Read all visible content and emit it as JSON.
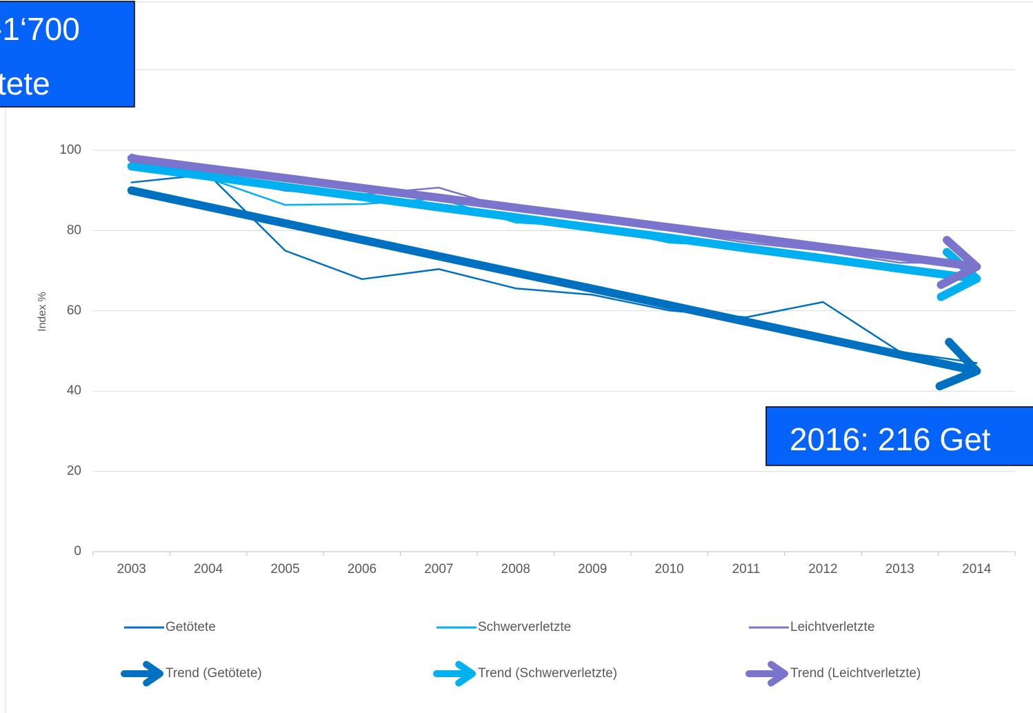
{
  "chart_data": {
    "type": "line",
    "y_label": "Index %",
    "categories": [
      "2003",
      "2004",
      "2005",
      "2006",
      "2007",
      "2008",
      "2009",
      "2010",
      "2011",
      "2012",
      "2013",
      "2014"
    ],
    "ylim": [
      0,
      137
    ],
    "yticks": [
      0,
      20,
      40,
      60,
      80,
      100
    ],
    "grid": true,
    "series": [
      {
        "name": "Getötete",
        "color": "#0070c0",
        "values": [
          92,
          94,
          75,
          67.9,
          70.4,
          65.6,
          64,
          60.1,
          58.4,
          62.2,
          49.8,
          47
        ]
      },
      {
        "name": "Schwerverletzte",
        "color": "#00b0f0",
        "values": [
          96,
          93,
          86.4,
          86.6,
          88,
          82,
          81,
          77,
          76,
          73,
          70,
          69
        ]
      },
      {
        "name": "Leichtverletzte",
        "color": "#7b74cc",
        "values": [
          99,
          94,
          89.9,
          89,
          90.7,
          85,
          83,
          80,
          77,
          75,
          72,
          72
        ]
      },
      {
        "name": "Trend (Getötete)",
        "color": "#0070c0",
        "arrow": true,
        "values": [
          90,
          85.9,
          81.8,
          77.7,
          73.6,
          69.5,
          65.5,
          61.4,
          57.3,
          53.2,
          49.1,
          45
        ]
      },
      {
        "name": "Trend (Schwerverletzte)",
        "color": "#00b0f0",
        "arrow": true,
        "values": [
          96,
          93.5,
          90.9,
          88.4,
          85.8,
          83.3,
          80.7,
          78.2,
          75.6,
          73.1,
          70.5,
          68
        ]
      },
      {
        "name": "Trend (Leichtverletzte)",
        "color": "#7b74cc",
        "arrow": true,
        "values": [
          98,
          95.5,
          93.1,
          90.6,
          88.2,
          85.7,
          83.3,
          80.8,
          78.4,
          75.9,
          73.5,
          71
        ]
      }
    ],
    "annotations": [
      "-1‘700",
      "tete",
      "2016: 216 Get"
    ]
  }
}
